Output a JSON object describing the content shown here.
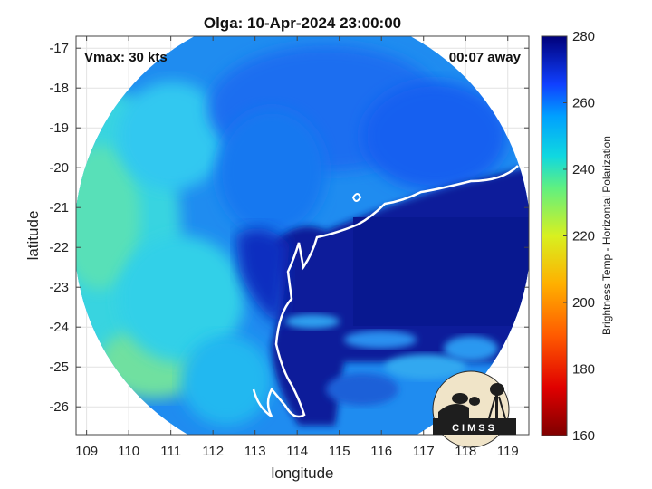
{
  "title": "Olga: 10-Apr-2024 23:00:00",
  "vmax_label": "Vmax: 30 kts",
  "time_label": "00:07 away",
  "xlabel": "longitude",
  "ylabel": "latitude",
  "x_ticks": [
    "109",
    "110",
    "111",
    "112",
    "113",
    "114",
    "115",
    "116",
    "117",
    "118",
    "119"
  ],
  "y_ticks": [
    "-17",
    "-18",
    "-19",
    "-20",
    "-21",
    "-22",
    "-23",
    "-24",
    "-25",
    "-26"
  ],
  "colorbar": {
    "label": "Brightness Temp - Horizontal Polarization",
    "ticks": [
      "280",
      "260",
      "240",
      "220",
      "200",
      "180",
      "160"
    ],
    "min": 160,
    "max": 280
  },
  "logo": {
    "text": "CIMSS"
  },
  "map": {
    "lon_range": [
      108.75,
      119.5
    ],
    "lat_range": [
      -26.7,
      -16.7
    ]
  }
}
